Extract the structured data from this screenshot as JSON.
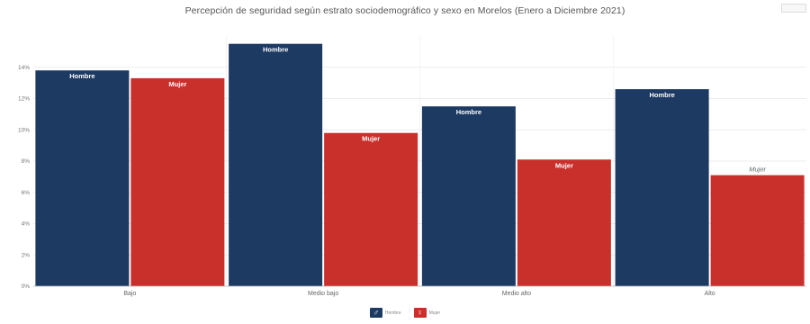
{
  "chart_data": {
    "type": "bar",
    "title": "Percepción de seguridad según estrato sociodemográfico y sexo en Morelos (Enero a Diciembre 2021)",
    "categories": [
      "Bajo",
      "Medio bajo",
      "Medio alto",
      "Alto"
    ],
    "series": [
      {
        "name": "Hombre",
        "color": "#1d3a63",
        "values": [
          13.8,
          15.5,
          11.5,
          12.6
        ]
      },
      {
        "name": "Mujer",
        "color": "#c9302c",
        "values": [
          13.3,
          9.8,
          8.1,
          7.1
        ]
      }
    ],
    "bar_labels": [
      [
        "Hombre",
        "Hombre",
        "Hombre",
        "Hombre"
      ],
      [
        "Mujer",
        "Mujer",
        "Mujer",
        "Mujer"
      ]
    ],
    "yticks": [
      "0%",
      "2%",
      "4%",
      "6%",
      "8%",
      "10%",
      "12%",
      "14%"
    ],
    "ylim": [
      0,
      16
    ],
    "grid": true,
    "legend_position": "bottom-center",
    "legend": [
      {
        "name": "Hombre",
        "icon": "male-symbol-icon",
        "color": "#1d3a63"
      },
      {
        "name": "Mujer",
        "icon": "female-symbol-icon",
        "color": "#c9302c"
      }
    ]
  }
}
